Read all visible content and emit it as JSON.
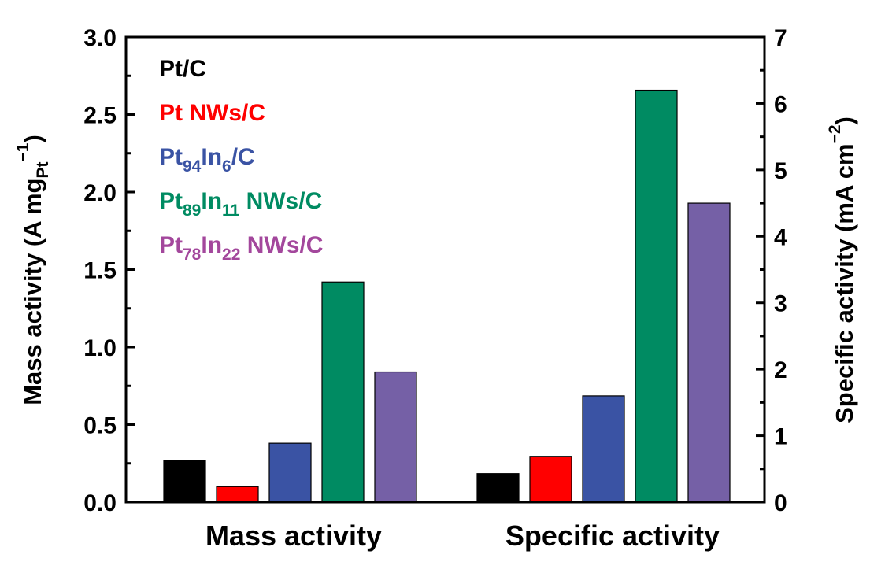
{
  "chart_data": {
    "type": "bar",
    "categories": [
      "Mass activity",
      "Specific activity"
    ],
    "series": [
      {
        "name": "Pt/C",
        "color": "#000000",
        "values": [
          0.27,
          0.43
        ]
      },
      {
        "name": "Pt NWs/C",
        "color": "#ff0000",
        "values": [
          0.1,
          0.69
        ]
      },
      {
        "name": "Pt94In6/C",
        "color": "#3a53a4",
        "values": [
          0.38,
          1.6
        ]
      },
      {
        "name": "Pt89In11 NWs/C",
        "color": "#008b62",
        "values": [
          1.42,
          6.2
        ]
      },
      {
        "name": "Pt78In22 NWs/C",
        "color": "#7560a6",
        "values": [
          0.84,
          4.5
        ]
      }
    ],
    "series_axis": [
      "left",
      "right"
    ],
    "left_axis": {
      "label_main": "Mass activity (A mg",
      "label_sub": "Pt",
      "label_sup": "−1",
      "label_end": ")",
      "ylim": [
        0,
        3.0
      ],
      "ticks": [
        "0.0",
        "0.5",
        "1.0",
        "1.5",
        "2.0",
        "2.5",
        "3.0"
      ]
    },
    "right_axis": {
      "label_main": "Specific activity (mA cm",
      "label_sup": "−2",
      "label_end": ")",
      "ylim": [
        0,
        7
      ],
      "ticks": [
        "0",
        "1",
        "2",
        "3",
        "4",
        "5",
        "6",
        "7"
      ]
    },
    "legend": {
      "placement": "top-left",
      "entries": [
        {
          "color": "#000000",
          "parts": [
            {
              "t": "Pt/C"
            }
          ]
        },
        {
          "color": "#ff0000",
          "parts": [
            {
              "t": "Pt NWs/C"
            }
          ]
        },
        {
          "color": "#3a53a4",
          "parts": [
            {
              "t": "Pt"
            },
            {
              "t": "94",
              "sub": true
            },
            {
              "t": "In"
            },
            {
              "t": "6",
              "sub": true
            },
            {
              "t": "/C"
            }
          ]
        },
        {
          "color": "#008b62",
          "parts": [
            {
              "t": "Pt"
            },
            {
              "t": "89",
              "sub": true
            },
            {
              "t": "In"
            },
            {
              "t": "11",
              "sub": true
            },
            {
              "t": " NWs/C"
            }
          ]
        },
        {
          "color": "#a3479c",
          "parts": [
            {
              "t": "Pt"
            },
            {
              "t": "78",
              "sub": true
            },
            {
              "t": "In"
            },
            {
              "t": "22",
              "sub": true
            },
            {
              "t": " NWs/C"
            }
          ]
        }
      ]
    },
    "grid": false
  }
}
